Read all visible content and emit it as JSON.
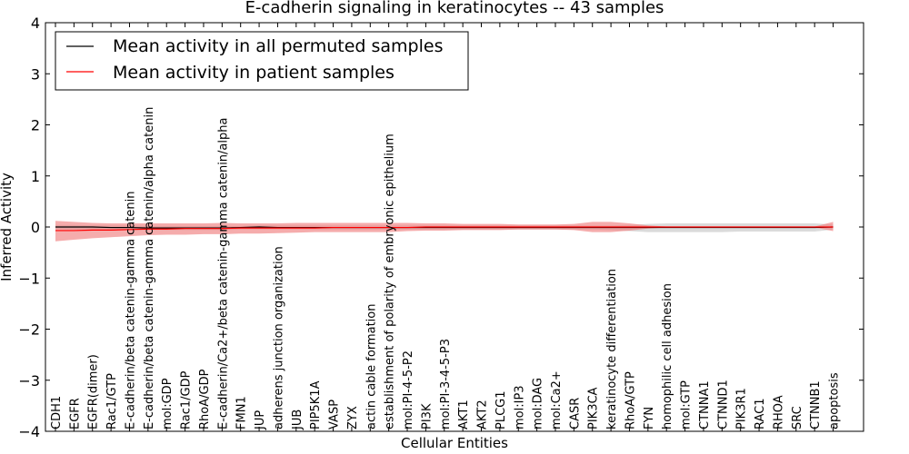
{
  "chart_data": {
    "type": "line",
    "title": "E-cadherin signaling in keratinocytes -- 43 samples",
    "xlabel": "Cellular Entities",
    "ylabel": "Inferred Activity",
    "ylim": [
      -4,
      4
    ],
    "yticks": [
      -4,
      -3,
      -2,
      -1,
      0,
      1,
      2,
      3,
      4
    ],
    "ytick_labels": [
      "−4",
      "−3",
      "−2",
      "−1",
      "0",
      "1",
      "2",
      "3",
      "4"
    ],
    "grid": false,
    "legend_position": "top-left",
    "categories": [
      "CDH1",
      "EGFR",
      "EGFR(dimer)",
      "Rac1/GTP",
      "E-cadherin/beta catenin-gamma catenin",
      "E-cadherin/beta catenin-gamma catenin/alpha catenin",
      "mol:GDP",
      "Rac1/GDP",
      "RhoA/GDP",
      "E-cadherin/Ca2+/beta catenin-gamma catenin/alpha",
      "FMN1",
      "JUP",
      "adherens junction organization",
      "JUB",
      "PIP5K1A",
      "VASP",
      "ZYX",
      "actin cable formation",
      "establishment of polarity of embryonic epithelium",
      "mol:PI-4-5-P2",
      "PI3K",
      "mol:PI-3-4-5-P3",
      "AKT1",
      "AKT2",
      "PLCG1",
      "mol:IP3",
      "mol:DAG",
      "mol:Ca2+",
      "CASR",
      "PIK3CA",
      "keratinocyte differentiation",
      "RhoA/GTP",
      "FYN",
      "homophilic cell adhesion",
      "mol:GTP",
      "CTNNA1",
      "CTNND1",
      "PIK3R1",
      "RAC1",
      "RHOA",
      "SRC",
      "CTNNB1",
      "apoptosis"
    ],
    "series": [
      {
        "name": "Mean activity in all permuted samples",
        "color": "#000000",
        "values": [
          0,
          0,
          0,
          -0.01,
          -0.01,
          -0.02,
          -0.02,
          -0.02,
          -0.02,
          -0.02,
          -0.01,
          0,
          -0.01,
          -0.01,
          -0.01,
          -0.01,
          -0.01,
          -0.01,
          -0.01,
          -0.01,
          -0.01,
          -0.01,
          -0.01,
          -0.01,
          -0.01,
          -0.01,
          -0.01,
          -0.01,
          -0.01,
          -0.01,
          -0.01,
          -0.01,
          -0.01,
          -0.01,
          -0.01,
          -0.01,
          -0.01,
          -0.01,
          -0.01,
          -0.01,
          -0.01,
          -0.01,
          0
        ],
        "lower": [
          -0.04,
          -0.05,
          -0.05,
          -0.05,
          -0.06,
          -0.06,
          -0.06,
          -0.06,
          -0.06,
          -0.06,
          -0.05,
          -0.05,
          -0.05,
          -0.05,
          -0.05,
          -0.05,
          -0.05,
          -0.05,
          -0.05,
          -0.05,
          -0.05,
          -0.05,
          -0.05,
          -0.05,
          -0.05,
          -0.05,
          -0.05,
          -0.05,
          -0.05,
          -0.05,
          -0.06,
          -0.08,
          -0.1,
          -0.1,
          -0.1,
          -0.1,
          -0.1,
          -0.09,
          -0.09,
          -0.09,
          -0.09,
          -0.09,
          -0.05
        ],
        "upper": [
          0.04,
          0.04,
          0.03,
          0.03,
          0.03,
          0.02,
          0.02,
          0.02,
          0.02,
          0.02,
          0.02,
          0.03,
          0.03,
          0.03,
          0.03,
          0.03,
          0.03,
          0.03,
          0.03,
          0.03,
          0.03,
          0.03,
          0.03,
          0.03,
          0.03,
          0.03,
          0.03,
          0.03,
          0.03,
          0.03,
          0.03,
          0.04,
          0.06,
          0.07,
          0.07,
          0.07,
          0.07,
          0.07,
          0.07,
          0.07,
          0.07,
          0.07,
          0.05
        ]
      },
      {
        "name": "Mean activity in patient samples",
        "color": "#ff0000",
        "band_color": "#f08080",
        "values": [
          -0.07,
          -0.07,
          -0.06,
          -0.06,
          -0.05,
          -0.04,
          -0.04,
          -0.03,
          -0.03,
          -0.03,
          -0.02,
          -0.02,
          -0.02,
          -0.02,
          -0.02,
          -0.01,
          -0.01,
          -0.01,
          -0.01,
          -0.01,
          0,
          0,
          0,
          0,
          0,
          0,
          0,
          0,
          0,
          0,
          0,
          0,
          0,
          0,
          0,
          0,
          0,
          0,
          0,
          0,
          0,
          0,
          0
        ],
        "lower": [
          -0.28,
          -0.25,
          -0.22,
          -0.2,
          -0.18,
          -0.16,
          -0.15,
          -0.15,
          -0.14,
          -0.14,
          -0.13,
          -0.13,
          -0.12,
          -0.11,
          -0.1,
          -0.1,
          -0.1,
          -0.1,
          -0.1,
          -0.08,
          -0.07,
          -0.07,
          -0.06,
          -0.06,
          -0.06,
          -0.05,
          -0.05,
          -0.05,
          -0.06,
          -0.1,
          -0.1,
          -0.07,
          -0.03,
          -0.01,
          -0.01,
          -0.01,
          -0.01,
          -0.01,
          -0.01,
          -0.01,
          -0.01,
          -0.01,
          -0.08
        ],
        "upper": [
          0.12,
          0.1,
          0.08,
          0.07,
          0.07,
          0.07,
          0.07,
          0.07,
          0.07,
          0.08,
          0.07,
          0.07,
          0.07,
          0.08,
          0.08,
          0.08,
          0.08,
          0.08,
          0.08,
          0.08,
          0.07,
          0.07,
          0.06,
          0.06,
          0.06,
          0.05,
          0.05,
          0.05,
          0.06,
          0.1,
          0.1,
          0.07,
          0.03,
          0.01,
          0.01,
          0.01,
          0.01,
          0.01,
          0.01,
          0.01,
          0.01,
          0.01,
          0.1
        ]
      }
    ]
  }
}
